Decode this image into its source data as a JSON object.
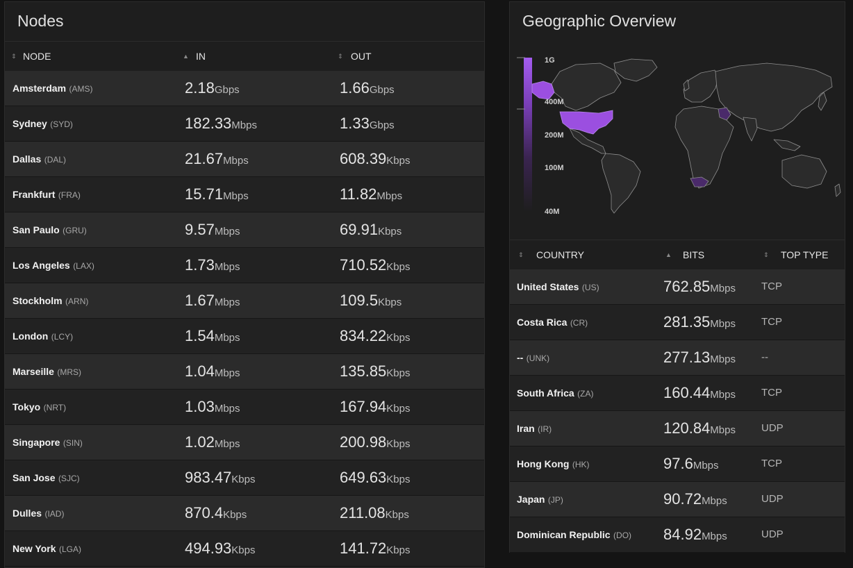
{
  "nodes": {
    "title": "Nodes",
    "columns": {
      "node": "NODE",
      "in": "IN",
      "out": "OUT"
    },
    "sort_indicators": {
      "node": "⇕",
      "in": "▲",
      "out": "⇕"
    },
    "rows": [
      {
        "name": "Amsterdam",
        "code": "(AMS)",
        "in_val": "2.18",
        "in_unit": "Gbps",
        "out_val": "1.66",
        "out_unit": "Gbps"
      },
      {
        "name": "Sydney",
        "code": "(SYD)",
        "in_val": "182.33",
        "in_unit": "Mbps",
        "out_val": "1.33",
        "out_unit": "Gbps"
      },
      {
        "name": "Dallas",
        "code": "(DAL)",
        "in_val": "21.67",
        "in_unit": "Mbps",
        "out_val": "608.39",
        "out_unit": "Kbps"
      },
      {
        "name": "Frankfurt",
        "code": "(FRA)",
        "in_val": "15.71",
        "in_unit": "Mbps",
        "out_val": "11.82",
        "out_unit": "Mbps"
      },
      {
        "name": "San Paulo",
        "code": "(GRU)",
        "in_val": "9.57",
        "in_unit": "Mbps",
        "out_val": "69.91",
        "out_unit": "Kbps"
      },
      {
        "name": "Los Angeles",
        "code": "(LAX)",
        "in_val": "1.73",
        "in_unit": "Mbps",
        "out_val": "710.52",
        "out_unit": "Kbps"
      },
      {
        "name": "Stockholm",
        "code": "(ARN)",
        "in_val": "1.67",
        "in_unit": "Mbps",
        "out_val": "109.5",
        "out_unit": "Kbps"
      },
      {
        "name": "London",
        "code": "(LCY)",
        "in_val": "1.54",
        "in_unit": "Mbps",
        "out_val": "834.22",
        "out_unit": "Kbps"
      },
      {
        "name": "Marseille",
        "code": "(MRS)",
        "in_val": "1.04",
        "in_unit": "Mbps",
        "out_val": "135.85",
        "out_unit": "Kbps"
      },
      {
        "name": "Tokyo",
        "code": "(NRT)",
        "in_val": "1.03",
        "in_unit": "Mbps",
        "out_val": "167.94",
        "out_unit": "Kbps"
      },
      {
        "name": "Singapore",
        "code": "(SIN)",
        "in_val": "1.02",
        "in_unit": "Mbps",
        "out_val": "200.98",
        "out_unit": "Kbps"
      },
      {
        "name": "San Jose",
        "code": "(SJC)",
        "in_val": "983.47",
        "in_unit": "Kbps",
        "out_val": "649.63",
        "out_unit": "Kbps"
      },
      {
        "name": "Dulles",
        "code": "(IAD)",
        "in_val": "870.4",
        "in_unit": "Kbps",
        "out_val": "211.08",
        "out_unit": "Kbps"
      },
      {
        "name": "New York",
        "code": "(LGA)",
        "in_val": "494.93",
        "in_unit": "Kbps",
        "out_val": "141.72",
        "out_unit": "Kbps"
      }
    ]
  },
  "geo": {
    "title": "Geographic Overview",
    "legend": [
      "1G",
      "400M",
      "200M",
      "100M",
      "40M"
    ],
    "colors": {
      "accent": "#9b4fe0",
      "accent_dark": "#4a2a6a",
      "land": "#2a2a2a",
      "border": "#8a8a8a"
    },
    "columns": {
      "country": "COUNTRY",
      "bits": "BITS",
      "top_type": "TOP TYPE"
    },
    "sort_indicators": {
      "country": "⇕",
      "bits": "▲",
      "top_type": "⇕"
    },
    "rows": [
      {
        "name": "United States",
        "code": "(US)",
        "val": "762.85",
        "unit": "Mbps",
        "type": "TCP"
      },
      {
        "name": "Costa Rica",
        "code": "(CR)",
        "val": "281.35",
        "unit": "Mbps",
        "type": "TCP"
      },
      {
        "name": "--",
        "code": "(UNK)",
        "val": "277.13",
        "unit": "Mbps",
        "type": "--"
      },
      {
        "name": "South Africa",
        "code": "(ZA)",
        "val": "160.44",
        "unit": "Mbps",
        "type": "TCP"
      },
      {
        "name": "Iran",
        "code": "(IR)",
        "val": "120.84",
        "unit": "Mbps",
        "type": "UDP"
      },
      {
        "name": "Hong Kong",
        "code": "(HK)",
        "val": "97.6",
        "unit": "Mbps",
        "type": "TCP"
      },
      {
        "name": "Japan",
        "code": "(JP)",
        "val": "90.72",
        "unit": "Mbps",
        "type": "UDP"
      },
      {
        "name": "Dominican Republic",
        "code": "(DO)",
        "val": "84.92",
        "unit": "Mbps",
        "type": "UDP"
      }
    ]
  }
}
